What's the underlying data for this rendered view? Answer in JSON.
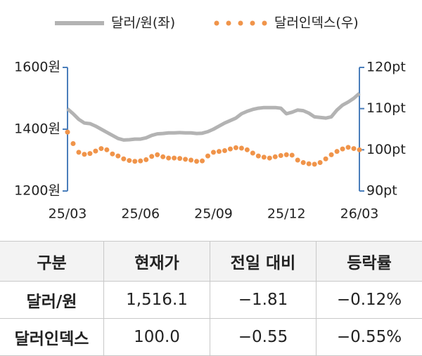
{
  "chart_data": {
    "type": "line",
    "categories": [
      "25/03",
      null,
      null,
      null,
      null,
      null,
      null,
      null,
      null,
      null,
      null,
      null,
      null,
      "25/06",
      null,
      null,
      null,
      null,
      null,
      null,
      null,
      null,
      null,
      null,
      null,
      null,
      "25/09",
      null,
      null,
      null,
      null,
      null,
      null,
      null,
      null,
      null,
      null,
      null,
      null,
      "25/12",
      null,
      null,
      null,
      null,
      null,
      null,
      null,
      null,
      null,
      null,
      null,
      null,
      "26/03"
    ],
    "series": [
      {
        "name": "달러/원(좌)",
        "color": "#b3b3b3",
        "line_style": "solid",
        "values": [
          1466,
          1450,
          1432,
          1420,
          1418,
          1410,
          1400,
          1390,
          1380,
          1370,
          1365,
          1366,
          1368,
          1368,
          1372,
          1380,
          1385,
          1386,
          1388,
          1388,
          1389,
          1388,
          1388,
          1386,
          1387,
          1392,
          1400,
          1410,
          1420,
          1428,
          1436,
          1450,
          1458,
          1464,
          1468,
          1470,
          1470,
          1470,
          1468,
          1450,
          1455,
          1462,
          1460,
          1452,
          1440,
          1438,
          1436,
          1440,
          1462,
          1478,
          1488,
          1500,
          1516
        ]
      },
      {
        "name": "달러인덱스(우)",
        "color": "#f0944a",
        "line_style": "dotted",
        "axis": "y2",
        "values": [
          104.3,
          101.5,
          99.4,
          98.9,
          99.1,
          99.7,
          100.3,
          100.0,
          99.0,
          98.5,
          97.8,
          97.4,
          97.2,
          97.3,
          97.6,
          98.4,
          98.8,
          98.3,
          98.0,
          98.0,
          97.9,
          97.7,
          97.5,
          97.2,
          97.3,
          98.5,
          99.4,
          99.6,
          99.8,
          100.2,
          100.5,
          100.4,
          100.0,
          99.2,
          98.5,
          98.2,
          98.0,
          98.3,
          98.6,
          98.8,
          98.7,
          97.5,
          96.9,
          96.6,
          96.5,
          96.9,
          97.8,
          98.8,
          99.6,
          100.2,
          100.6,
          100.3,
          100.0
        ]
      }
    ],
    "ylim": [
      1200,
      1600
    ],
    "yticks": [
      {
        "value": 1200,
        "label": "1200원"
      },
      {
        "value": 1400,
        "label": "1400원"
      },
      {
        "value": 1600,
        "label": "1600원"
      }
    ],
    "y2lim": [
      90,
      120
    ],
    "y2ticks": [
      {
        "value": 90,
        "label": "90pt"
      },
      {
        "value": 100,
        "label": "100pt"
      },
      {
        "value": 110,
        "label": "110pt"
      },
      {
        "value": 120,
        "label": "120pt"
      }
    ],
    "axis_color": "#4a7ebb",
    "legend": "top"
  },
  "table": {
    "header": [
      "구분",
      "현재가",
      "전일 대비",
      "등락률"
    ],
    "rows": [
      [
        "달러/원",
        "1,516.1",
        "−1.81",
        "−0.12%"
      ],
      [
        "달러인덱스",
        "100.0",
        "−0.55",
        "−0.55%"
      ]
    ]
  }
}
